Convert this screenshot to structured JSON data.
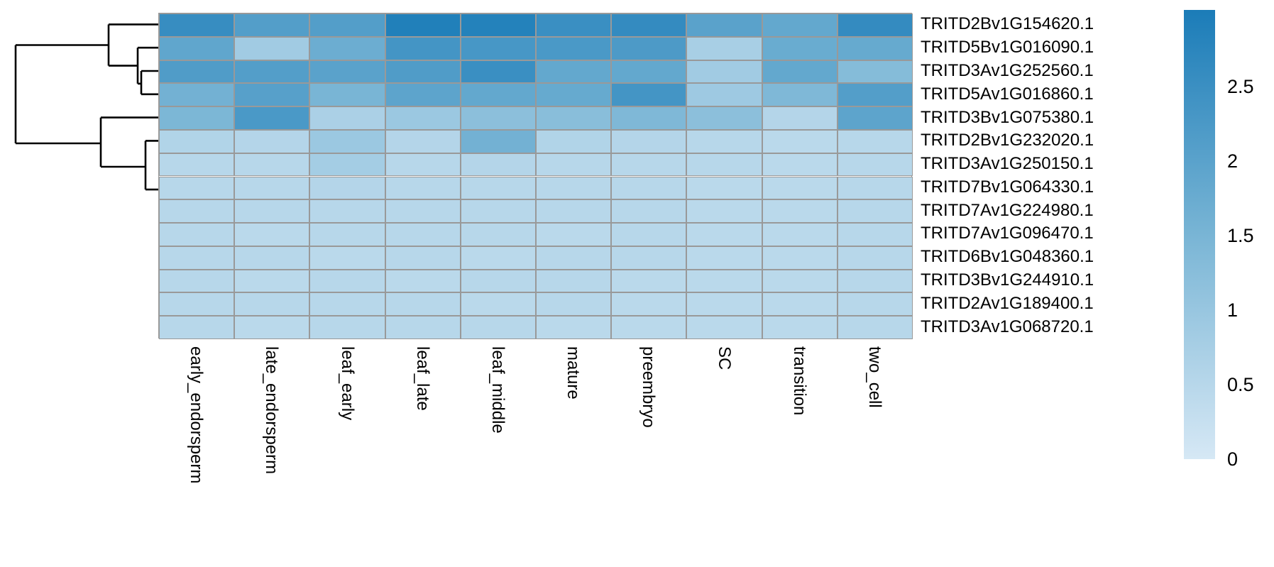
{
  "chart_data": {
    "type": "heatmap",
    "title": "",
    "xlabel": "",
    "ylabel": "",
    "columns": [
      "early_endorsperm",
      "late_endorsperm",
      "leaf_early",
      "leaf_late",
      "leaf_middle",
      "mature",
      "preembryo",
      "SC",
      "transition",
      "two_cell"
    ],
    "rows": [
      "TRITD2Bv1G154620.1",
      "TRITD5Bv1G016090.1",
      "TRITD3Av1G252560.1",
      "TRITD5Av1G016860.1",
      "TRITD3Bv1G075380.1",
      "TRITD2Bv1G232020.1",
      "TRITD3Av1G250150.1",
      "TRITD7Bv1G064330.1",
      "TRITD7Av1G224980.1",
      "TRITD7Av1G096470.1",
      "TRITD6Bv1G048360.1",
      "TRITD3Bv1G244910.1",
      "TRITD2Av1G189400.1",
      "TRITD3Av1G068720.1"
    ],
    "values": [
      [
        2.55,
        2.1,
        2.1,
        2.9,
        2.85,
        2.5,
        2.6,
        2.0,
        1.85,
        2.6
      ],
      [
        1.9,
        0.85,
        1.7,
        2.35,
        2.3,
        2.25,
        2.2,
        0.75,
        1.75,
        1.8
      ],
      [
        2.15,
        2.1,
        2.0,
        2.15,
        2.5,
        1.85,
        1.85,
        0.85,
        1.85,
        1.3
      ],
      [
        1.6,
        2.05,
        1.5,
        1.95,
        1.85,
        1.8,
        2.35,
        0.9,
        1.4,
        2.1
      ],
      [
        1.45,
        2.25,
        0.7,
        0.95,
        1.2,
        1.25,
        1.4,
        1.2,
        0.55,
        1.95
      ],
      [
        0.6,
        0.55,
        0.95,
        0.55,
        1.6,
        0.6,
        0.55,
        0.5,
        0.45,
        0.5
      ],
      [
        0.5,
        0.5,
        0.8,
        0.5,
        0.55,
        0.5,
        0.5,
        0.5,
        0.45,
        0.5
      ],
      [
        0.5,
        0.5,
        0.55,
        0.5,
        0.5,
        0.5,
        0.5,
        0.45,
        0.45,
        0.5
      ],
      [
        0.5,
        0.5,
        0.5,
        0.5,
        0.5,
        0.5,
        0.5,
        0.45,
        0.45,
        0.5
      ],
      [
        0.5,
        0.45,
        0.5,
        0.5,
        0.5,
        0.45,
        0.5,
        0.45,
        0.45,
        0.5
      ],
      [
        0.5,
        0.5,
        0.45,
        0.5,
        0.45,
        0.5,
        0.5,
        0.45,
        0.45,
        0.5
      ],
      [
        0.5,
        0.45,
        0.5,
        0.45,
        0.5,
        0.5,
        0.45,
        0.45,
        0.45,
        0.5
      ],
      [
        0.5,
        0.5,
        0.5,
        0.5,
        0.45,
        0.5,
        0.45,
        0.45,
        0.45,
        0.5
      ],
      [
        0.5,
        0.45,
        0.5,
        0.5,
        0.5,
        0.45,
        0.45,
        0.45,
        0.45,
        0.5
      ]
    ],
    "color_scale": {
      "min": 0,
      "mid": 1.5,
      "max": 3.0,
      "low_color": "#d6e8f5",
      "mid_color": "#79b5d5",
      "high_color": "#1b7cb8"
    },
    "grid_color": "#999999",
    "legend": {
      "position": "right",
      "tick_labels": [
        "2.5",
        "2",
        "1.5",
        "1",
        "0.5",
        "0"
      ],
      "tick_values": [
        2.5,
        2,
        1.5,
        1,
        0.5,
        0
      ],
      "value_range": [
        0,
        3.015
      ]
    },
    "row_dendrogram": {
      "line_color": "#000000",
      "segments": [
        [
          22,
          63.5,
          22,
          202
        ],
        [
          22,
          63.5,
          153,
          63.5
        ],
        [
          153,
          34.4,
          153,
          92.6
        ],
        [
          153,
          34.4,
          223,
          34.4
        ],
        [
          153,
          92.6,
          194,
          92.6
        ],
        [
          194,
          67.2,
          194,
          117.9
        ],
        [
          194,
          67.2,
          223,
          67.2
        ],
        [
          194,
          117.9,
          199,
          117.9
        ],
        [
          199,
          100.0,
          199,
          132.8
        ],
        [
          199,
          100.0,
          223,
          100.0
        ],
        [
          199,
          132.8,
          223,
          132.8
        ],
        [
          22,
          202,
          142,
          202
        ],
        [
          142,
          165.6,
          142,
          235
        ],
        [
          142,
          165.6,
          223,
          165.6
        ],
        [
          142,
          235,
          205,
          235
        ],
        [
          205,
          198.4,
          205,
          267.1
        ],
        [
          205,
          198.4,
          223,
          198.4
        ],
        [
          205,
          267.1,
          223,
          267.1
        ]
      ]
    }
  }
}
